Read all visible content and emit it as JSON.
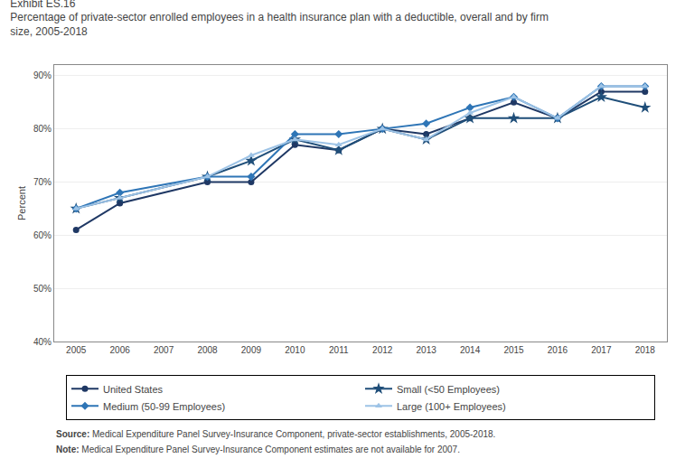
{
  "chart_data": {
    "type": "line",
    "title": "Exhibit ES.16",
    "subtitle": [
      "Percentage of private-sector enrolled employees in a health insurance plan with a deductible, overall and by firm",
      "size, 2005-2018"
    ],
    "ylabel": "Percent",
    "annotations": [
      "Source: Medical Expenditure Panel Survey-Insurance Component, private-sector establishments, 2005-2018.",
      "Note: Medical Expenditure Panel Survey-Insurance Component estimates are not available for 2007."
    ],
    "x": [
      2005,
      2006,
      2008,
      2009,
      2010,
      2011,
      2012,
      2013,
      2014,
      2015,
      2016,
      2017,
      2018
    ],
    "series": [
      {
        "name": "United States",
        "color": "#1f3864",
        "marker": "circle",
        "values": [
          61,
          66,
          70,
          70,
          77,
          76,
          80,
          79,
          82,
          85,
          82,
          87,
          87
        ]
      },
      {
        "name": "Small (<50 Employees)",
        "color": "#1f4e79",
        "marker": "star",
        "values": [
          65,
          67,
          71,
          74,
          78,
          76,
          80,
          78,
          82,
          82,
          82,
          86,
          84
        ]
      },
      {
        "name": "Medium (50-99 Employees)",
        "color": "#2e75b6",
        "marker": "diamond",
        "values": [
          65,
          68,
          71,
          71,
          79,
          79,
          80,
          81,
          84,
          86,
          82,
          88,
          88
        ]
      },
      {
        "name": "Large (100+ Employees)",
        "color": "#9dc3e6",
        "marker": "triangle-up",
        "values": [
          65,
          67,
          71,
          75,
          78,
          77,
          80,
          78,
          83,
          86,
          82,
          88,
          88
        ]
      }
    ],
    "xlim": [
      2004.5,
      2018.5
    ],
    "xticks": [
      2005,
      2006,
      2007,
      2008,
      2009,
      2010,
      2011,
      2012,
      2013,
      2014,
      2015,
      2016,
      2017,
      2018
    ],
    "ylim": [
      40,
      92
    ],
    "yticks": [
      {
        "value": 40,
        "label": "40%"
      },
      {
        "value": 50,
        "label": "50%"
      },
      {
        "value": 60,
        "label": "60%"
      },
      {
        "value": 70,
        "label": "70%"
      },
      {
        "value": 80,
        "label": "80%"
      },
      {
        "value": 90,
        "label": "90%"
      }
    ],
    "grid": true,
    "legend": "bottom"
  }
}
